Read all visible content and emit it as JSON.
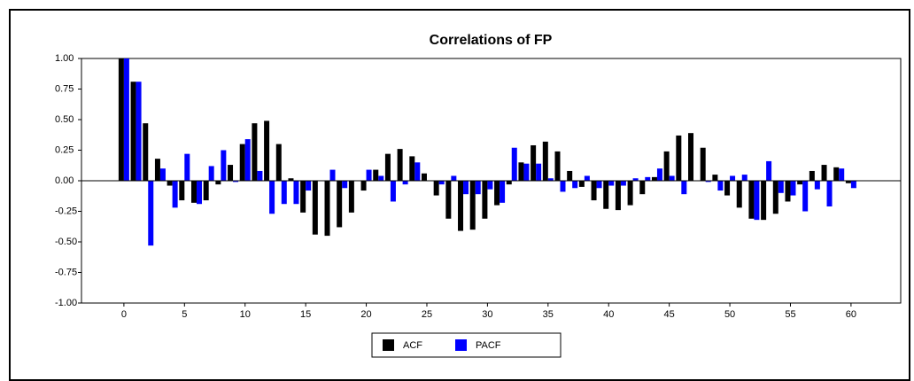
{
  "chart_data": {
    "type": "bar",
    "title": "Correlations of FP",
    "x": [
      0,
      1,
      2,
      3,
      4,
      5,
      6,
      7,
      8,
      9,
      10,
      11,
      12,
      13,
      14,
      15,
      16,
      17,
      18,
      19,
      20,
      21,
      22,
      23,
      24,
      25,
      26,
      27,
      28,
      29,
      30,
      31,
      32,
      33,
      34,
      35,
      36,
      37,
      38,
      39,
      40,
      41,
      42,
      43,
      44,
      45,
      46,
      47,
      48,
      49,
      50,
      51,
      52,
      53,
      54,
      55,
      56,
      57,
      58,
      59,
      60
    ],
    "series": [
      {
        "name": "ACF",
        "color": "#000000",
        "values": [
          1.0,
          0.81,
          0.47,
          0.18,
          -0.04,
          -0.16,
          -0.18,
          -0.16,
          -0.03,
          0.13,
          0.3,
          0.47,
          0.49,
          0.3,
          0.02,
          -0.26,
          -0.44,
          -0.45,
          -0.38,
          -0.26,
          -0.08,
          0.09,
          0.22,
          0.26,
          0.2,
          0.06,
          -0.12,
          -0.31,
          -0.41,
          -0.4,
          -0.31,
          -0.2,
          -0.03,
          0.15,
          0.29,
          0.32,
          0.24,
          0.08,
          -0.05,
          -0.16,
          -0.23,
          -0.24,
          -0.2,
          -0.11,
          0.03,
          0.24,
          0.37,
          0.39,
          0.27,
          0.05,
          -0.12,
          -0.22,
          -0.31,
          -0.32,
          -0.27,
          -0.17,
          -0.03,
          0.08,
          0.13,
          0.11,
          -0.02
        ]
      },
      {
        "name": "PACF",
        "color": "#0000ff",
        "values": [
          1.0,
          0.81,
          -0.53,
          0.1,
          -0.22,
          0.22,
          -0.19,
          0.12,
          0.25,
          -0.01,
          0.34,
          0.08,
          -0.27,
          -0.19,
          -0.19,
          -0.08,
          0.0,
          0.09,
          -0.06,
          0.0,
          0.09,
          0.04,
          -0.17,
          -0.03,
          0.15,
          0.0,
          -0.03,
          0.04,
          -0.11,
          -0.11,
          -0.07,
          -0.18,
          0.27,
          0.14,
          0.14,
          0.02,
          -0.09,
          -0.06,
          0.04,
          -0.06,
          -0.04,
          -0.04,
          0.02,
          0.03,
          0.1,
          0.04,
          -0.11,
          0.0,
          -0.01,
          -0.08,
          0.04,
          0.05,
          -0.32,
          0.16,
          -0.1,
          -0.12,
          -0.25,
          -0.07,
          -0.21,
          0.1,
          -0.06
        ]
      }
    ],
    "xlim": [
      -3.5,
      64.1
    ],
    "xticks": [
      0,
      5,
      10,
      15,
      20,
      25,
      30,
      35,
      40,
      45,
      50,
      55,
      60
    ],
    "ylim": [
      -1,
      1
    ],
    "yticks": [
      {
        "value": -1,
        "label": "-1.00"
      },
      {
        "value": -0.75,
        "label": "-0.75"
      },
      {
        "value": -0.5,
        "label": "-0.50"
      },
      {
        "value": -0.25,
        "label": "-0.25"
      },
      {
        "value": 0,
        "label": "0.00"
      },
      {
        "value": 0.25,
        "label": "0.25"
      },
      {
        "value": 0.5,
        "label": "0.50"
      },
      {
        "value": 0.75,
        "label": "0.75"
      },
      {
        "value": 1,
        "label": "1.00"
      }
    ],
    "legend": "bottom"
  }
}
